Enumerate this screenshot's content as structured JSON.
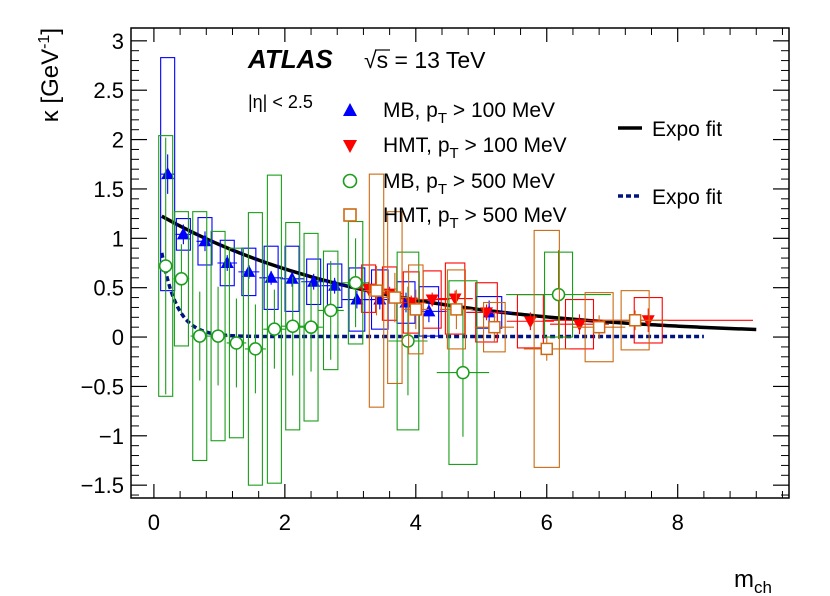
{
  "chart_data": {
    "type": "scatter",
    "xlabel": "m",
    "xlabel_sub": "ch",
    "ylabel_prefix": "κ [GeV",
    "ylabel_sup": "-1",
    "ylabel_suffix": "]",
    "xlim": [
      -0.35,
      9.7
    ],
    "ylim": [
      -1.63,
      3.13
    ],
    "x_ticks": [
      0,
      2,
      4,
      6,
      8
    ],
    "x_tick_labels": [
      "0",
      "2",
      "4",
      "6",
      "8"
    ],
    "y_ticks": [
      -1.5,
      -1,
      -0.5,
      0,
      0.5,
      1,
      1.5,
      2,
      2.5,
      3
    ],
    "y_tick_labels": [
      "−1.5",
      "−1",
      "−0.5",
      "0",
      "0.5",
      "1",
      "1.5",
      "2",
      "2.5",
      "3"
    ],
    "annotations": {
      "experiment": "ATLAS",
      "energy_prefix": "√s",
      "energy_suffix": " = 13 TeV",
      "eta_cut": "|η| < 2.5"
    },
    "series": [
      {
        "name": "MB, p_T > 100 MeV",
        "legend_main": "MB, p",
        "legend_sub": "T",
        "legend_tail": " > 100 MeV",
        "marker": "triangle-up",
        "color": "#0000ff",
        "points": [
          {
            "x": 0.21,
            "y": 1.65,
            "xerr": 0.1,
            "yerr": 0.2,
            "syst": 1.18
          },
          {
            "x": 0.45,
            "y": 1.04,
            "xerr": 0.12,
            "yerr": 0.1,
            "syst": 0.16
          },
          {
            "x": 0.78,
            "y": 0.97,
            "xerr": 0.13,
            "yerr": 0.1,
            "syst": 0.24
          },
          {
            "x": 1.12,
            "y": 0.75,
            "xerr": 0.15,
            "yerr": 0.08,
            "syst": 0.23
          },
          {
            "x": 1.45,
            "y": 0.66,
            "xerr": 0.16,
            "yerr": 0.07,
            "syst": 0.24
          },
          {
            "x": 1.79,
            "y": 0.6,
            "xerr": 0.18,
            "yerr": 0.07,
            "syst": 0.32
          },
          {
            "x": 2.11,
            "y": 0.59,
            "xerr": 0.18,
            "yerr": 0.08,
            "syst": 0.33
          },
          {
            "x": 2.44,
            "y": 0.56,
            "xerr": 0.19,
            "yerr": 0.08,
            "syst": 0.23
          },
          {
            "x": 2.76,
            "y": 0.52,
            "xerr": 0.2,
            "yerr": 0.08,
            "syst": 0.22
          },
          {
            "x": 3.1,
            "y": 0.38,
            "xerr": 0.22,
            "yerr": 0.09,
            "syst": 0.32
          },
          {
            "x": 3.45,
            "y": 0.38,
            "xerr": 0.23,
            "yerr": 0.1,
            "syst": 0.3
          },
          {
            "x": 3.85,
            "y": 0.35,
            "xerr": 0.25,
            "yerr": 0.1,
            "syst": 0.21
          },
          {
            "x": 4.2,
            "y": 0.26,
            "xerr": 0.27,
            "yerr": 0.11,
            "syst": 0.25
          },
          {
            "x": 5.12,
            "y": 0.25,
            "xerr": 0.35,
            "yerr": 0.12,
            "syst": 0.16
          }
        ]
      },
      {
        "name": "HMT, p_T > 100 MeV",
        "legend_main": "HMT, p",
        "legend_sub": "T",
        "legend_tail": " > 100 MeV",
        "marker": "triangle-down",
        "color": "#ff0000",
        "points": [
          {
            "x": 3.28,
            "y": 0.49,
            "xerr": 0.18,
            "yerr": 0.07,
            "syst": 0.24
          },
          {
            "x": 3.6,
            "y": 0.44,
            "xerr": 0.2,
            "yerr": 0.07,
            "syst": 0.27
          },
          {
            "x": 3.93,
            "y": 0.35,
            "xerr": 0.22,
            "yerr": 0.07,
            "syst": 0.31
          },
          {
            "x": 4.25,
            "y": 0.38,
            "xerr": 0.25,
            "yerr": 0.07,
            "syst": 0.29
          },
          {
            "x": 4.6,
            "y": 0.39,
            "xerr": 0.27,
            "yerr": 0.08,
            "syst": 0.36
          },
          {
            "x": 5.08,
            "y": 0.25,
            "xerr": 0.3,
            "yerr": 0.08,
            "syst": 0.3
          },
          {
            "x": 5.75,
            "y": 0.16,
            "xerr": 0.36,
            "yerr": 0.09,
            "syst": 0.27
          },
          {
            "x": 6.5,
            "y": 0.13,
            "xerr": 0.45,
            "yerr": 0.1,
            "syst": 0.25
          },
          {
            "x": 7.55,
            "y": 0.17,
            "xerr": 1.6,
            "yerr": 0.12,
            "syst": 0.23
          }
        ]
      },
      {
        "name": "MB, p_T > 500 MeV",
        "legend_main": "MB, p",
        "legend_sub": "T",
        "legend_tail": " > 500 MeV",
        "marker": "circle-open",
        "color": "#1a9e1a",
        "points": [
          {
            "x": 0.18,
            "y": 0.72,
            "xerr": 0.1,
            "yerr": 1.3,
            "syst": 1.32
          },
          {
            "x": 0.42,
            "y": 0.59,
            "xerr": 0.12,
            "yerr": 0.35,
            "syst": 0.68
          },
          {
            "x": 0.7,
            "y": 0.01,
            "xerr": 0.14,
            "yerr": 0.45,
            "syst": 1.26
          },
          {
            "x": 0.98,
            "y": 0.01,
            "xerr": 0.15,
            "yerr": 0.5,
            "syst": 1.06
          },
          {
            "x": 1.26,
            "y": -0.06,
            "xerr": 0.15,
            "yerr": 0.45,
            "syst": 0.96
          },
          {
            "x": 1.55,
            "y": -0.12,
            "xerr": 0.16,
            "yerr": 0.45,
            "syst": 1.38
          },
          {
            "x": 1.84,
            "y": 0.08,
            "xerr": 0.17,
            "yerr": 0.4,
            "syst": 1.56
          },
          {
            "x": 2.12,
            "y": 0.11,
            "xerr": 0.17,
            "yerr": 0.5,
            "syst": 1.05
          },
          {
            "x": 2.4,
            "y": 0.1,
            "xerr": 0.18,
            "yerr": 0.45,
            "syst": 0.95
          },
          {
            "x": 2.7,
            "y": 0.27,
            "xerr": 0.2,
            "yerr": 0.5,
            "syst": 0.6
          },
          {
            "x": 3.08,
            "y": 0.55,
            "xerr": 0.2,
            "yerr": 0.45,
            "syst": 0.62
          },
          {
            "x": 3.88,
            "y": -0.04,
            "xerr": 0.3,
            "yerr": 0.55,
            "syst": 0.9
          },
          {
            "x": 4.72,
            "y": -0.36,
            "xerr": 0.4,
            "yerr": 0.65,
            "syst": 0.93
          },
          {
            "x": 6.18,
            "y": 0.43,
            "xerr": 0.8,
            "yerr": 0.45,
            "syst": 0.43
          }
        ]
      },
      {
        "name": "HMT, p_T > 500 MeV",
        "legend_main": "HMT, p",
        "legend_sub": "T",
        "legend_tail": " > 500 MeV",
        "marker": "square-open",
        "color": "#cc6a14",
        "points": [
          {
            "x": 3.4,
            "y": 0.47,
            "xerr": 0.2,
            "yerr": 0.25,
            "syst": 1.18
          },
          {
            "x": 3.68,
            "y": 0.4,
            "xerr": 0.2,
            "yerr": 0.25,
            "syst": 0.87
          },
          {
            "x": 4.0,
            "y": 0.28,
            "xerr": 0.2,
            "yerr": 0.2,
            "syst": 0.45
          },
          {
            "x": 4.62,
            "y": 0.28,
            "xerr": 0.25,
            "yerr": 0.2,
            "syst": 0.4
          },
          {
            "x": 5.2,
            "y": 0.1,
            "xerr": 0.3,
            "yerr": 0.15,
            "syst": 0.25
          },
          {
            "x": 6.0,
            "y": -0.12,
            "xerr": 0.35,
            "yerr": 0.12,
            "syst": 1.2
          },
          {
            "x": 6.8,
            "y": 0.1,
            "xerr": 0.4,
            "yerr": 0.12,
            "syst": 0.35
          },
          {
            "x": 7.35,
            "y": 0.17,
            "xerr": 0.5,
            "yerr": 0.1,
            "syst": 0.3
          }
        ]
      }
    ],
    "fits": [
      {
        "name": "Expo fit",
        "style": "solid",
        "color": "#000000",
        "a": 1.27,
        "b": 0.305,
        "c": 0.0,
        "x_range": [
          0.12,
          9.2
        ]
      },
      {
        "name": "Expo fit",
        "style": "dashed",
        "color": "#001480",
        "a": 1.42,
        "b": 4.3,
        "c": 0.005,
        "x_range": [
          0.12,
          8.4
        ]
      }
    ]
  }
}
